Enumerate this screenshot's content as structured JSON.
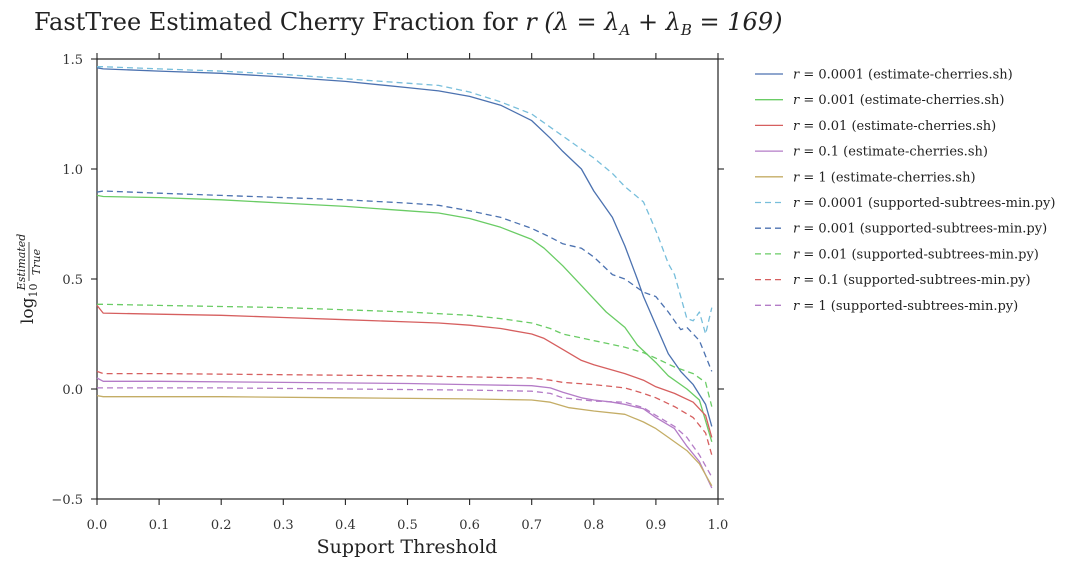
{
  "chart_data": {
    "type": "line",
    "title_prefix": "FastTree Estimated Cherry Fraction  for ",
    "title_math": "r (λ = λ",
    "title_sub_a": "A",
    "title_mid": " + λ",
    "title_sub_b": "B",
    "title_end": " = 169)",
    "xlabel": "Support Threshold",
    "ylabel_prefix": "log",
    "ylabel_sub": "10",
    "ylabel_num": "Estimated",
    "ylabel_den": "True",
    "xlim": [
      0.0,
      1.0
    ],
    "ylim": [
      -0.5,
      1.5
    ],
    "xticks": [
      0.0,
      0.1,
      0.2,
      0.3,
      0.4,
      0.5,
      0.6,
      0.7,
      0.8,
      0.9,
      1.0
    ],
    "xtick_labels": [
      "0.0",
      "0.1",
      "0.2",
      "0.3",
      "0.4",
      "0.5",
      "0.6",
      "0.7",
      "0.8",
      "0.9",
      "1.0"
    ],
    "yticks": [
      -0.5,
      0.0,
      0.5,
      1.0,
      1.5
    ],
    "ytick_labels": [
      "−0.5",
      "0.0",
      "0.5",
      "1.0",
      "1.5"
    ],
    "grid": false,
    "legend_position": "outside-right",
    "series": [
      {
        "name": "= 0.0001 (estimate-cherries.sh)",
        "name_var": "r",
        "color": "#4c72b0",
        "style": "solid",
        "points": [
          [
            0,
            1.46
          ],
          [
            0.01,
            1.455
          ],
          [
            0.1,
            1.445
          ],
          [
            0.2,
            1.435
          ],
          [
            0.3,
            1.418
          ],
          [
            0.4,
            1.398
          ],
          [
            0.5,
            1.37
          ],
          [
            0.55,
            1.355
          ],
          [
            0.6,
            1.33
          ],
          [
            0.65,
            1.29
          ],
          [
            0.7,
            1.22
          ],
          [
            0.73,
            1.14
          ],
          [
            0.75,
            1.08
          ],
          [
            0.78,
            1.0
          ],
          [
            0.8,
            0.9
          ],
          [
            0.83,
            0.78
          ],
          [
            0.85,
            0.65
          ],
          [
            0.87,
            0.5
          ],
          [
            0.88,
            0.42
          ],
          [
            0.9,
            0.29
          ],
          [
            0.92,
            0.16
          ],
          [
            0.94,
            0.08
          ],
          [
            0.96,
            0.02
          ],
          [
            0.98,
            -0.07
          ],
          [
            0.99,
            -0.17
          ]
        ]
      },
      {
        "name": "= 0.001 (estimate-cherries.sh)",
        "name_var": "r",
        "color": "#6acc65",
        "style": "solid",
        "points": [
          [
            0,
            0.88
          ],
          [
            0.01,
            0.875
          ],
          [
            0.1,
            0.87
          ],
          [
            0.2,
            0.86
          ],
          [
            0.3,
            0.845
          ],
          [
            0.4,
            0.83
          ],
          [
            0.5,
            0.81
          ],
          [
            0.55,
            0.8
          ],
          [
            0.6,
            0.775
          ],
          [
            0.65,
            0.735
          ],
          [
            0.7,
            0.68
          ],
          [
            0.72,
            0.64
          ],
          [
            0.75,
            0.56
          ],
          [
            0.78,
            0.47
          ],
          [
            0.8,
            0.41
          ],
          [
            0.82,
            0.35
          ],
          [
            0.85,
            0.28
          ],
          [
            0.87,
            0.2
          ],
          [
            0.9,
            0.12
          ],
          [
            0.92,
            0.06
          ],
          [
            0.95,
            0.0
          ],
          [
            0.97,
            -0.05
          ],
          [
            0.99,
            -0.24
          ]
        ]
      },
      {
        "name": "= 0.01 (estimate-cherries.sh)",
        "name_var": "r",
        "color": "#d65f5f",
        "style": "solid",
        "points": [
          [
            0,
            0.38
          ],
          [
            0.01,
            0.345
          ],
          [
            0.1,
            0.34
          ],
          [
            0.2,
            0.335
          ],
          [
            0.3,
            0.325
          ],
          [
            0.4,
            0.315
          ],
          [
            0.5,
            0.305
          ],
          [
            0.55,
            0.3
          ],
          [
            0.6,
            0.29
          ],
          [
            0.65,
            0.275
          ],
          [
            0.7,
            0.25
          ],
          [
            0.72,
            0.23
          ],
          [
            0.75,
            0.18
          ],
          [
            0.78,
            0.13
          ],
          [
            0.8,
            0.11
          ],
          [
            0.85,
            0.07
          ],
          [
            0.88,
            0.04
          ],
          [
            0.9,
            0.01
          ],
          [
            0.93,
            -0.02
          ],
          [
            0.96,
            -0.06
          ],
          [
            0.98,
            -0.12
          ],
          [
            0.99,
            -0.22
          ]
        ]
      },
      {
        "name": "= 0.1 (estimate-cherries.sh)",
        "name_var": "r",
        "color": "#b47cc7",
        "style": "solid",
        "points": [
          [
            0,
            0.05
          ],
          [
            0.01,
            0.035
          ],
          [
            0.1,
            0.035
          ],
          [
            0.3,
            0.03
          ],
          [
            0.5,
            0.025
          ],
          [
            0.6,
            0.02
          ],
          [
            0.7,
            0.015
          ],
          [
            0.73,
            0.005
          ],
          [
            0.75,
            -0.015
          ],
          [
            0.78,
            -0.04
          ],
          [
            0.8,
            -0.05
          ],
          [
            0.83,
            -0.06
          ],
          [
            0.85,
            -0.07
          ],
          [
            0.88,
            -0.09
          ],
          [
            0.9,
            -0.13
          ],
          [
            0.93,
            -0.18
          ],
          [
            0.95,
            -0.26
          ],
          [
            0.97,
            -0.33
          ],
          [
            0.99,
            -0.45
          ]
        ]
      },
      {
        "name": "= 1 (estimate-cherries.sh)",
        "name_var": "r",
        "color": "#c4ad66",
        "style": "solid",
        "points": [
          [
            0,
            -0.03
          ],
          [
            0.01,
            -0.035
          ],
          [
            0.2,
            -0.035
          ],
          [
            0.4,
            -0.04
          ],
          [
            0.6,
            -0.045
          ],
          [
            0.7,
            -0.05
          ],
          [
            0.73,
            -0.06
          ],
          [
            0.76,
            -0.085
          ],
          [
            0.8,
            -0.1
          ],
          [
            0.85,
            -0.115
          ],
          [
            0.88,
            -0.15
          ],
          [
            0.9,
            -0.18
          ],
          [
            0.92,
            -0.22
          ],
          [
            0.95,
            -0.28
          ],
          [
            0.97,
            -0.34
          ],
          [
            0.99,
            -0.44
          ]
        ]
      },
      {
        "name": "= 0.0001 (supported-subtrees-min.py)",
        "name_var": "r",
        "color": "#77bedb",
        "style": "dashed",
        "points": [
          [
            0,
            1.465
          ],
          [
            0.01,
            1.465
          ],
          [
            0.1,
            1.455
          ],
          [
            0.2,
            1.445
          ],
          [
            0.3,
            1.43
          ],
          [
            0.4,
            1.41
          ],
          [
            0.5,
            1.39
          ],
          [
            0.55,
            1.38
          ],
          [
            0.6,
            1.35
          ],
          [
            0.65,
            1.305
          ],
          [
            0.7,
            1.25
          ],
          [
            0.73,
            1.19
          ],
          [
            0.75,
            1.15
          ],
          [
            0.78,
            1.09
          ],
          [
            0.8,
            1.05
          ],
          [
            0.83,
            0.98
          ],
          [
            0.85,
            0.92
          ],
          [
            0.88,
            0.85
          ],
          [
            0.9,
            0.72
          ],
          [
            0.92,
            0.57
          ],
          [
            0.93,
            0.52
          ],
          [
            0.94,
            0.42
          ],
          [
            0.95,
            0.32
          ],
          [
            0.96,
            0.31
          ],
          [
            0.97,
            0.35
          ],
          [
            0.98,
            0.25
          ],
          [
            0.99,
            0.37
          ]
        ]
      },
      {
        "name": "= 0.001 (supported-subtrees-min.py)",
        "name_var": "r",
        "color": "#4c72b0",
        "style": "dashed",
        "points": [
          [
            0,
            0.895
          ],
          [
            0.01,
            0.9
          ],
          [
            0.1,
            0.89
          ],
          [
            0.2,
            0.88
          ],
          [
            0.3,
            0.87
          ],
          [
            0.4,
            0.86
          ],
          [
            0.5,
            0.845
          ],
          [
            0.55,
            0.835
          ],
          [
            0.6,
            0.81
          ],
          [
            0.65,
            0.78
          ],
          [
            0.7,
            0.73
          ],
          [
            0.73,
            0.69
          ],
          [
            0.75,
            0.66
          ],
          [
            0.78,
            0.64
          ],
          [
            0.8,
            0.6
          ],
          [
            0.83,
            0.52
          ],
          [
            0.85,
            0.5
          ],
          [
            0.88,
            0.44
          ],
          [
            0.9,
            0.42
          ],
          [
            0.92,
            0.35
          ],
          [
            0.94,
            0.27
          ],
          [
            0.95,
            0.28
          ],
          [
            0.97,
            0.22
          ],
          [
            0.99,
            0.08
          ]
        ]
      },
      {
        "name": "= 0.01 (supported-subtrees-min.py)",
        "name_var": "r",
        "color": "#6acc65",
        "style": "dashed",
        "points": [
          [
            0,
            0.385
          ],
          [
            0.01,
            0.385
          ],
          [
            0.1,
            0.38
          ],
          [
            0.2,
            0.375
          ],
          [
            0.3,
            0.37
          ],
          [
            0.4,
            0.36
          ],
          [
            0.5,
            0.35
          ],
          [
            0.6,
            0.335
          ],
          [
            0.65,
            0.32
          ],
          [
            0.7,
            0.3
          ],
          [
            0.73,
            0.275
          ],
          [
            0.75,
            0.25
          ],
          [
            0.8,
            0.22
          ],
          [
            0.85,
            0.19
          ],
          [
            0.88,
            0.165
          ],
          [
            0.9,
            0.14
          ],
          [
            0.93,
            0.1
          ],
          [
            0.96,
            0.07
          ],
          [
            0.98,
            0.03
          ],
          [
            0.99,
            -0.08
          ]
        ]
      },
      {
        "name": "= 0.1 (supported-subtrees-min.py)",
        "name_var": "r",
        "color": "#d65f5f",
        "style": "dashed",
        "points": [
          [
            0,
            0.08
          ],
          [
            0.01,
            0.07
          ],
          [
            0.1,
            0.07
          ],
          [
            0.3,
            0.065
          ],
          [
            0.5,
            0.06
          ],
          [
            0.6,
            0.055
          ],
          [
            0.7,
            0.05
          ],
          [
            0.73,
            0.04
          ],
          [
            0.75,
            0.03
          ],
          [
            0.8,
            0.02
          ],
          [
            0.85,
            0.005
          ],
          [
            0.88,
            -0.02
          ],
          [
            0.9,
            -0.04
          ],
          [
            0.93,
            -0.08
          ],
          [
            0.96,
            -0.13
          ],
          [
            0.98,
            -0.2
          ],
          [
            0.99,
            -0.3
          ]
        ]
      },
      {
        "name": "= 1 (supported-subtrees-min.py)",
        "name_var": "r",
        "color": "#b47cc7",
        "style": "dashed",
        "points": [
          [
            0,
            0.005
          ],
          [
            0.01,
            0.005
          ],
          [
            0.2,
            0.005
          ],
          [
            0.4,
            0.0
          ],
          [
            0.6,
            -0.005
          ],
          [
            0.7,
            -0.01
          ],
          [
            0.73,
            -0.02
          ],
          [
            0.75,
            -0.04
          ],
          [
            0.8,
            -0.055
          ],
          [
            0.85,
            -0.06
          ],
          [
            0.88,
            -0.085
          ],
          [
            0.9,
            -0.12
          ],
          [
            0.93,
            -0.17
          ],
          [
            0.95,
            -0.22
          ],
          [
            0.97,
            -0.3
          ],
          [
            0.99,
            -0.4
          ]
        ]
      }
    ]
  }
}
